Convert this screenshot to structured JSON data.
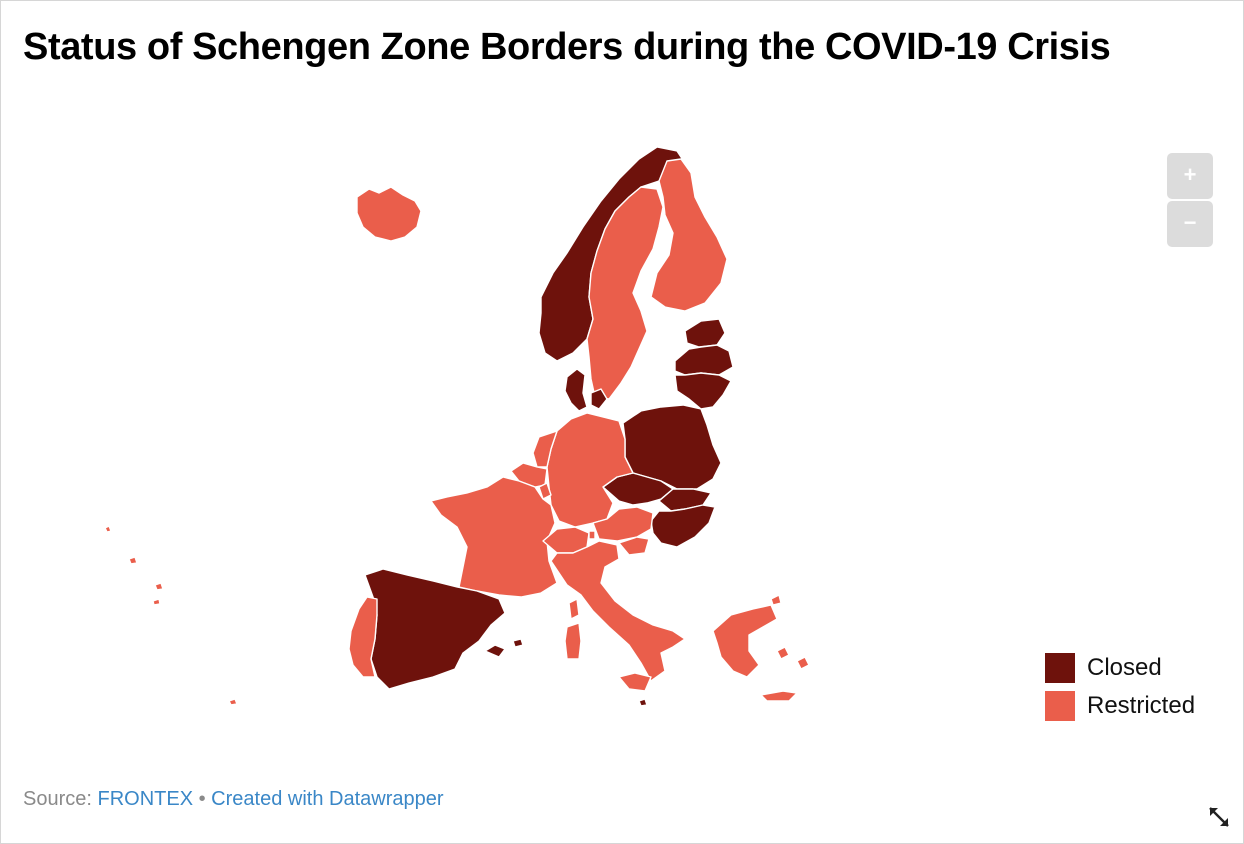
{
  "title": "Status of Schengen Zone Borders during the COVID-19 Crisis",
  "colors": {
    "closed": "#6e120c",
    "restricted": "#ea5e4b",
    "border": "#ffffff"
  },
  "legend": {
    "closed": "Closed",
    "restricted": "Restricted"
  },
  "map_data": {
    "regions": [
      {
        "name": "Iceland",
        "status": "restricted"
      },
      {
        "name": "Norway",
        "status": "closed"
      },
      {
        "name": "Sweden",
        "status": "restricted"
      },
      {
        "name": "Finland",
        "status": "restricted"
      },
      {
        "name": "Estonia",
        "status": "closed"
      },
      {
        "name": "Latvia",
        "status": "closed"
      },
      {
        "name": "Lithuania",
        "status": "closed"
      },
      {
        "name": "Denmark",
        "status": "closed"
      },
      {
        "name": "Poland",
        "status": "closed"
      },
      {
        "name": "Czech Republic",
        "status": "closed"
      },
      {
        "name": "Slovakia",
        "status": "closed"
      },
      {
        "name": "Hungary",
        "status": "closed"
      },
      {
        "name": "Spain",
        "status": "closed"
      },
      {
        "name": "Germany",
        "status": "restricted"
      },
      {
        "name": "Netherlands",
        "status": "restricted"
      },
      {
        "name": "Belgium",
        "status": "restricted"
      },
      {
        "name": "Luxembourg",
        "status": "restricted"
      },
      {
        "name": "France",
        "status": "restricted"
      },
      {
        "name": "Switzerland",
        "status": "restricted"
      },
      {
        "name": "Liechtenstein",
        "status": "restricted"
      },
      {
        "name": "Austria",
        "status": "restricted"
      },
      {
        "name": "Slovenia",
        "status": "restricted"
      },
      {
        "name": "Italy",
        "status": "restricted"
      },
      {
        "name": "Portugal",
        "status": "restricted"
      },
      {
        "name": "Greece",
        "status": "restricted"
      },
      {
        "name": "Malta",
        "status": "closed"
      }
    ]
  },
  "zoom": {
    "in_label": "+",
    "out_label": "−"
  },
  "footer": {
    "source_prefix": "Source: ",
    "source_link": "FRONTEX",
    "separator": " • ",
    "credit": "Created with Datawrapper"
  }
}
